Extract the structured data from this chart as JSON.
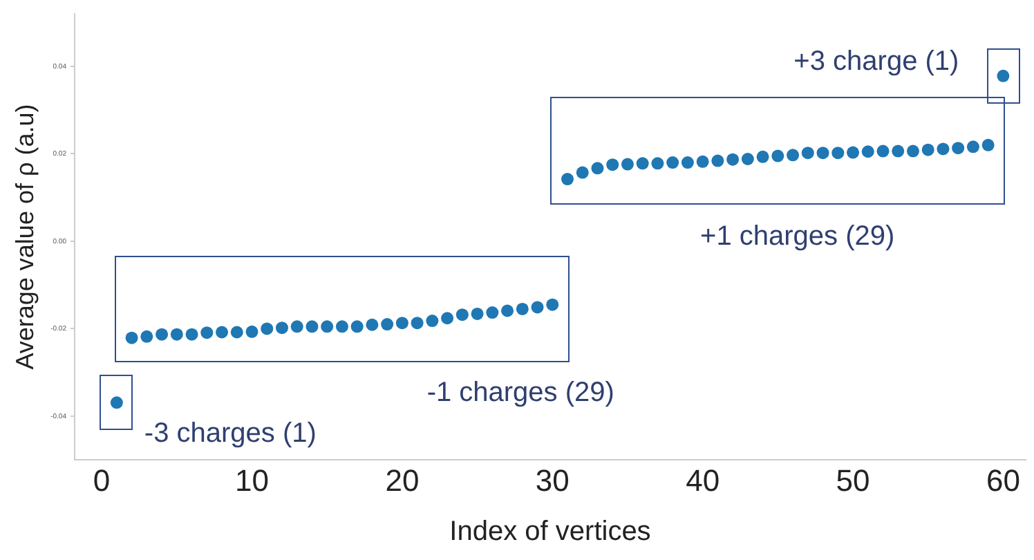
{
  "chart_data": {
    "type": "scatter",
    "xlabel": "Index of vertices",
    "ylabel": "Average value of ρ (a.u)",
    "xlim": [
      -1.8,
      61.5
    ],
    "ylim": [
      -0.05,
      0.052
    ],
    "xticks": [
      0,
      10,
      20,
      30,
      40,
      50,
      60
    ],
    "yticks": [
      {
        "value": -0.04,
        "label": "-0.04"
      },
      {
        "value": -0.02,
        "label": "-0.02"
      },
      {
        "value": 0,
        "label": "0.00"
      },
      {
        "value": 0.02,
        "label": "0.02"
      },
      {
        "value": 0.04,
        "label": "0.04"
      }
    ],
    "grid": false,
    "legend": false,
    "marker": "circle",
    "series": [
      {
        "color": "#1f77b4",
        "x": [
          1
        ],
        "values": [
          -0.0369
        ]
      },
      {
        "color": "#1f77b4",
        "x": [
          2,
          3,
          4,
          5,
          6,
          7,
          8,
          9,
          10,
          11,
          12,
          13,
          14,
          15,
          16,
          17,
          18,
          19,
          20,
          21,
          22,
          23,
          24,
          25,
          26,
          27,
          28,
          29,
          30
        ],
        "values": [
          -0.0221,
          -0.0218,
          -0.0213,
          -0.0213,
          -0.0213,
          -0.0209,
          -0.0208,
          -0.0208,
          -0.0207,
          -0.02,
          -0.0198,
          -0.0195,
          -0.0195,
          -0.0195,
          -0.0195,
          -0.0195,
          -0.0191,
          -0.019,
          -0.0187,
          -0.0187,
          -0.0182,
          -0.0176,
          -0.0168,
          -0.0166,
          -0.0163,
          -0.0159,
          -0.0155,
          -0.0151,
          -0.0145
        ]
      },
      {
        "color": "#1f77b4",
        "x": [
          31,
          32,
          33,
          34,
          35,
          36,
          37,
          38,
          39,
          40,
          41,
          42,
          43,
          44,
          45,
          46,
          47,
          48,
          49,
          50,
          51,
          52,
          53,
          54,
          55,
          56,
          57,
          58,
          59
        ],
        "values": [
          0.0142,
          0.0157,
          0.0167,
          0.0175,
          0.0176,
          0.0178,
          0.0178,
          0.018,
          0.018,
          0.0182,
          0.0184,
          0.0187,
          0.0188,
          0.0193,
          0.0195,
          0.0197,
          0.0202,
          0.0202,
          0.0202,
          0.0203,
          0.0205,
          0.0206,
          0.0206,
          0.0206,
          0.0209,
          0.0211,
          0.0213,
          0.0216,
          0.022
        ]
      },
      {
        "color": "#1f77b4",
        "x": [
          60
        ],
        "values": [
          0.0378
        ]
      }
    ],
    "annotations": [
      "-3 charges (1)",
      "-1 charges (29)",
      "+1 charges (29)",
      "+3 charge (1)"
    ]
  }
}
